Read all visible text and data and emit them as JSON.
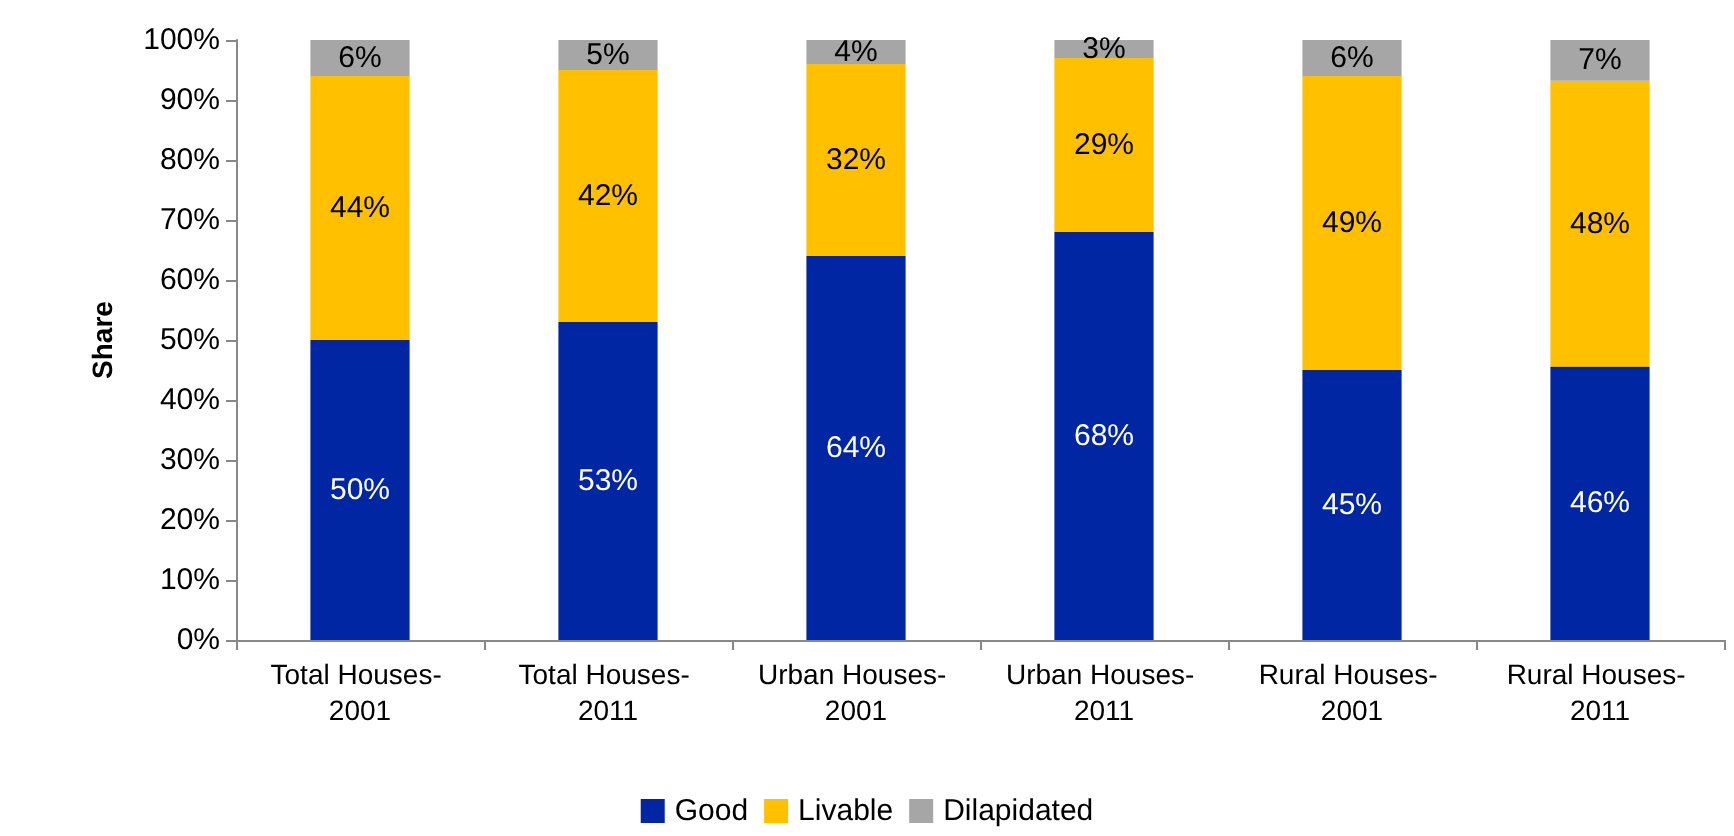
{
  "chart_data": {
    "type": "bar",
    "stacked": true,
    "ylabel": "Share",
    "categories": [
      "Total Houses- 2001",
      "Total Houses- 2011",
      "Urban Houses- 2001",
      "Urban Houses- 2011",
      "Rural Houses- 2001",
      "Rural Houses- 2011"
    ],
    "series": [
      {
        "name": "Good",
        "color": "#0026a3",
        "values": [
          50,
          53,
          64,
          68,
          45,
          45.6
        ],
        "value_labels": [
          "50%",
          "53%",
          "64%",
          "68%",
          "45%",
          "46%"
        ]
      },
      {
        "name": "Livable",
        "color": "#ffc000",
        "values": [
          44,
          42,
          32,
          29,
          49,
          47.6
        ],
        "value_labels": [
          "44%",
          "42%",
          "32%",
          "29%",
          "49%",
          "48%"
        ]
      },
      {
        "name": "Dilapidated",
        "color": "#a6a6a6",
        "values": [
          6,
          5,
          4,
          3,
          6,
          6.8
        ],
        "value_labels": [
          "6%",
          "5%",
          "4%",
          "3%",
          "6%",
          "7%"
        ]
      }
    ],
    "ylim": [
      0,
      100
    ],
    "yticks": [
      {
        "value": 0,
        "label": "0%"
      },
      {
        "value": 10,
        "label": "10%"
      },
      {
        "value": 20,
        "label": "20%"
      },
      {
        "value": 30,
        "label": "30%"
      },
      {
        "value": 40,
        "label": "40%"
      },
      {
        "value": 50,
        "label": "50%"
      },
      {
        "value": 60,
        "label": "60%"
      },
      {
        "value": 70,
        "label": "70%"
      },
      {
        "value": 80,
        "label": "80%"
      },
      {
        "value": 90,
        "label": "90%"
      },
      {
        "value": 100,
        "label": "100%"
      }
    ],
    "grid": false,
    "legend": "bottom"
  }
}
